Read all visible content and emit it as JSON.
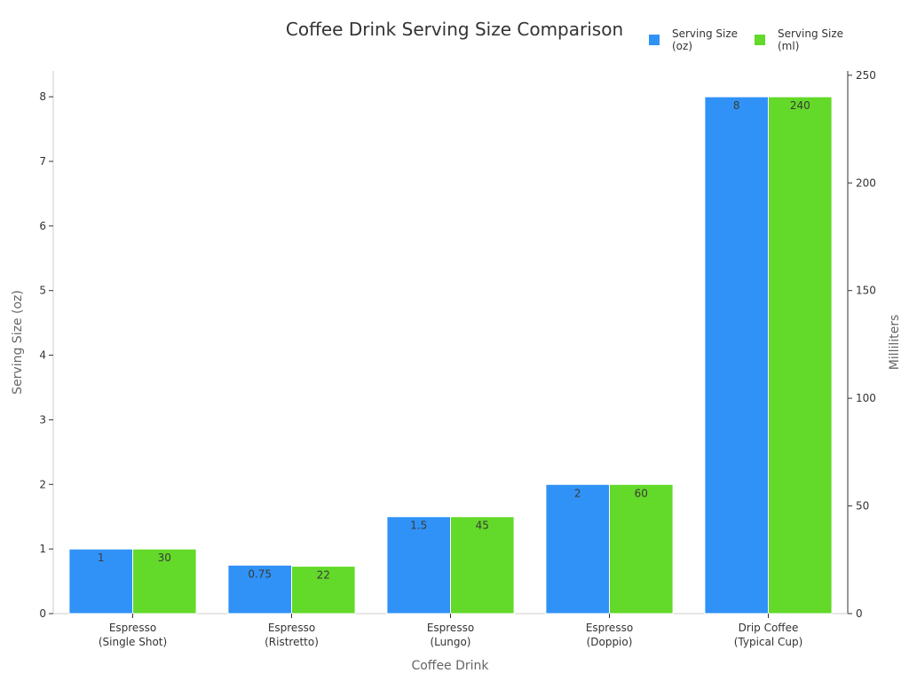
{
  "chart_data": {
    "type": "bar",
    "title": "Coffee Drink Serving Size Comparison",
    "xlabel": "Coffee Drink",
    "ylabel": "Serving Size (oz)",
    "y2label": "Milliliters",
    "categories": [
      [
        "Espresso",
        "(Single Shot)"
      ],
      [
        "Espresso",
        "(Ristretto)"
      ],
      [
        "Espresso",
        "(Lungo)"
      ],
      [
        "Espresso",
        "(Doppio)"
      ],
      [
        "Drip Coffee",
        "(Typical Cup)"
      ]
    ],
    "series": [
      {
        "name": "Serving Size (oz)",
        "legend_lines": [
          "Serving Size",
          "(oz)"
        ],
        "axis": "left",
        "color": "#3092f6",
        "values": [
          1,
          0.75,
          1.5,
          2,
          8
        ],
        "labels": [
          "1",
          "0.75",
          "1.5",
          "2",
          "8"
        ]
      },
      {
        "name": "Serving Size (ml)",
        "legend_lines": [
          "Serving Size",
          "(ml)"
        ],
        "axis": "right",
        "color": "#63d929",
        "values": [
          30,
          22,
          45,
          60,
          240
        ],
        "labels": [
          "30",
          "22",
          "45",
          "60",
          "240"
        ]
      }
    ],
    "ylim": [
      0,
      8.4
    ],
    "yticks": [
      0,
      1,
      2,
      3,
      4,
      5,
      6,
      7,
      8
    ],
    "y2lim": [
      0,
      252
    ],
    "y2ticks": [
      0,
      50,
      100,
      150,
      200,
      250
    ],
    "legend_position": "top-right",
    "grid": false
  }
}
